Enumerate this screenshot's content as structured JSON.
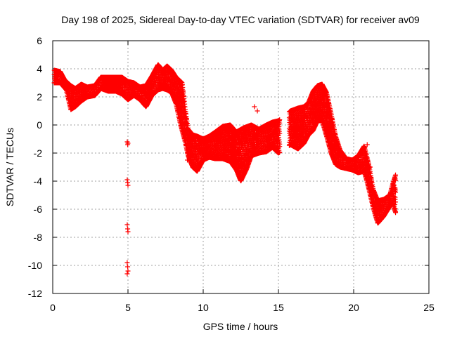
{
  "chart_data": {
    "type": "scatter",
    "title": "Day 198 of 2025, Sidereal Day-to-day VTEC variation (SDTVAR) for receiver av09",
    "xlabel": "GPS time / hours",
    "ylabel": "SDTVAR / TECUs",
    "xlim": [
      0,
      25
    ],
    "ylim": [
      -12,
      6
    ],
    "xticks": [
      0,
      5,
      10,
      15,
      20,
      25
    ],
    "yticks": [
      6,
      4,
      2,
      0,
      -2,
      -4,
      -6,
      -8,
      -10,
      -12
    ],
    "grid": true,
    "marker": "+",
    "marker_color": "#ff0000",
    "series": [
      {
        "name": "SDTVAR",
        "upper": [
          [
            0.1,
            3.9
          ],
          [
            0.5,
            3.8
          ],
          [
            0.8,
            3.2
          ],
          [
            1.2,
            2.8
          ],
          [
            1.5,
            2.6
          ],
          [
            1.9,
            2.9
          ],
          [
            2.3,
            2.7
          ],
          [
            2.8,
            2.8
          ],
          [
            3.2,
            3.4
          ],
          [
            3.7,
            3.4
          ],
          [
            4.2,
            3.4
          ],
          [
            4.6,
            3.4
          ],
          [
            5.0,
            3.1
          ],
          [
            5.4,
            3.0
          ],
          [
            5.8,
            2.7
          ],
          [
            6.2,
            2.8
          ],
          [
            6.6,
            3.5
          ],
          [
            7.0,
            4.3
          ],
          [
            7.3,
            3.9
          ],
          [
            7.6,
            4.2
          ],
          [
            7.9,
            3.9
          ],
          [
            8.2,
            3.4
          ],
          [
            8.6,
            3.0
          ],
          [
            8.8,
            1.2
          ],
          [
            9.0,
            -0.3
          ],
          [
            9.3,
            -0.7
          ],
          [
            9.6,
            -0.8
          ],
          [
            10.0,
            -1.0
          ],
          [
            10.4,
            -0.8
          ],
          [
            10.8,
            -0.5
          ],
          [
            11.3,
            -0.1
          ],
          [
            11.8,
            0.0
          ],
          [
            12.2,
            -0.5
          ],
          [
            12.7,
            -0.2
          ],
          [
            13.2,
            0.0
          ],
          [
            13.7,
            -0.3
          ],
          [
            14.2,
            0.0
          ],
          [
            14.6,
            0.2
          ],
          [
            15.0,
            0.3
          ],
          [
            15.8,
            1.0
          ],
          [
            16.3,
            1.2
          ],
          [
            16.7,
            1.3
          ],
          [
            17.0,
            1.6
          ],
          [
            17.3,
            2.4
          ],
          [
            17.6,
            2.8
          ],
          [
            17.9,
            2.9
          ],
          [
            18.2,
            2.3
          ],
          [
            18.5,
            0.8
          ],
          [
            18.8,
            -0.8
          ],
          [
            19.1,
            -1.8
          ],
          [
            19.5,
            -2.4
          ],
          [
            19.9,
            -2.5
          ],
          [
            20.3,
            -2.2
          ],
          [
            20.7,
            -1.5
          ],
          [
            21.0,
            -2.8
          ],
          [
            21.3,
            -4.6
          ],
          [
            21.6,
            -5.4
          ],
          [
            22.0,
            -5.3
          ],
          [
            22.4,
            -5.0
          ],
          [
            22.6,
            -4.2
          ],
          [
            22.8,
            -3.5
          ]
        ],
        "lower": [
          [
            0.1,
            3.0
          ],
          [
            0.5,
            3.0
          ],
          [
            0.9,
            2.5
          ],
          [
            1.2,
            1.1
          ],
          [
            1.5,
            1.3
          ],
          [
            1.9,
            1.7
          ],
          [
            2.3,
            2.0
          ],
          [
            2.8,
            2.1
          ],
          [
            3.2,
            2.6
          ],
          [
            3.7,
            2.4
          ],
          [
            4.2,
            2.4
          ],
          [
            4.6,
            2.2
          ],
          [
            5.0,
            1.8
          ],
          [
            5.4,
            2.1
          ],
          [
            5.8,
            1.8
          ],
          [
            6.2,
            1.3
          ],
          [
            6.6,
            2.1
          ],
          [
            7.0,
            2.5
          ],
          [
            7.3,
            2.6
          ],
          [
            7.6,
            2.5
          ],
          [
            7.9,
            2.3
          ],
          [
            8.2,
            1.5
          ],
          [
            8.5,
            0.0
          ],
          [
            8.8,
            -1.2
          ],
          [
            9.0,
            -2.2
          ],
          [
            9.3,
            -3.0
          ],
          [
            9.6,
            -3.3
          ],
          [
            10.0,
            -2.5
          ],
          [
            10.4,
            -2.3
          ],
          [
            10.8,
            -2.4
          ],
          [
            11.3,
            -2.4
          ],
          [
            11.8,
            -2.6
          ],
          [
            12.2,
            -3.2
          ],
          [
            12.5,
            -4.0
          ],
          [
            12.9,
            -3.1
          ],
          [
            13.2,
            -2.2
          ],
          [
            13.7,
            -2.0
          ],
          [
            14.2,
            -1.9
          ],
          [
            14.6,
            -1.6
          ],
          [
            15.0,
            -2.0
          ],
          [
            15.8,
            -1.4
          ],
          [
            16.3,
            -1.7
          ],
          [
            16.7,
            -1.3
          ],
          [
            17.0,
            -0.7
          ],
          [
            17.3,
            -0.4
          ],
          [
            17.6,
            0.3
          ],
          [
            17.9,
            0.3
          ],
          [
            18.2,
            -0.8
          ],
          [
            18.5,
            -2.0
          ],
          [
            18.8,
            -2.8
          ],
          [
            19.1,
            -3.0
          ],
          [
            19.5,
            -3.1
          ],
          [
            19.9,
            -3.2
          ],
          [
            20.3,
            -3.4
          ],
          [
            20.7,
            -3.3
          ],
          [
            21.0,
            -4.5
          ],
          [
            21.3,
            -5.9
          ],
          [
            21.6,
            -7.0
          ],
          [
            22.0,
            -6.5
          ],
          [
            22.4,
            -5.8
          ],
          [
            22.6,
            -5.6
          ],
          [
            22.8,
            -6.3
          ]
        ],
        "isolated": [
          [
            4.95,
            -1.2
          ],
          [
            4.98,
            -1.4
          ],
          [
            5.0,
            -1.3
          ],
          [
            4.95,
            -3.9
          ],
          [
            4.98,
            -4.1
          ],
          [
            5.0,
            -4.3
          ],
          [
            4.95,
            -7.1
          ],
          [
            4.98,
            -7.4
          ],
          [
            5.0,
            -7.6
          ],
          [
            4.95,
            -9.8
          ],
          [
            4.98,
            -10.1
          ],
          [
            5.0,
            -10.4
          ],
          [
            4.95,
            -10.6
          ],
          [
            13.4,
            1.3
          ],
          [
            13.6,
            1.0
          ],
          [
            15.8,
            -1.1
          ],
          [
            16.4,
            -1.6
          ],
          [
            16.3,
            0.5
          ],
          [
            16.9,
            0.3
          ],
          [
            8.95,
            -2.5
          ],
          [
            20.9,
            -1.4
          ],
          [
            21.1,
            -3.0
          ],
          [
            21.6,
            -6.9
          ]
        ]
      }
    ]
  }
}
